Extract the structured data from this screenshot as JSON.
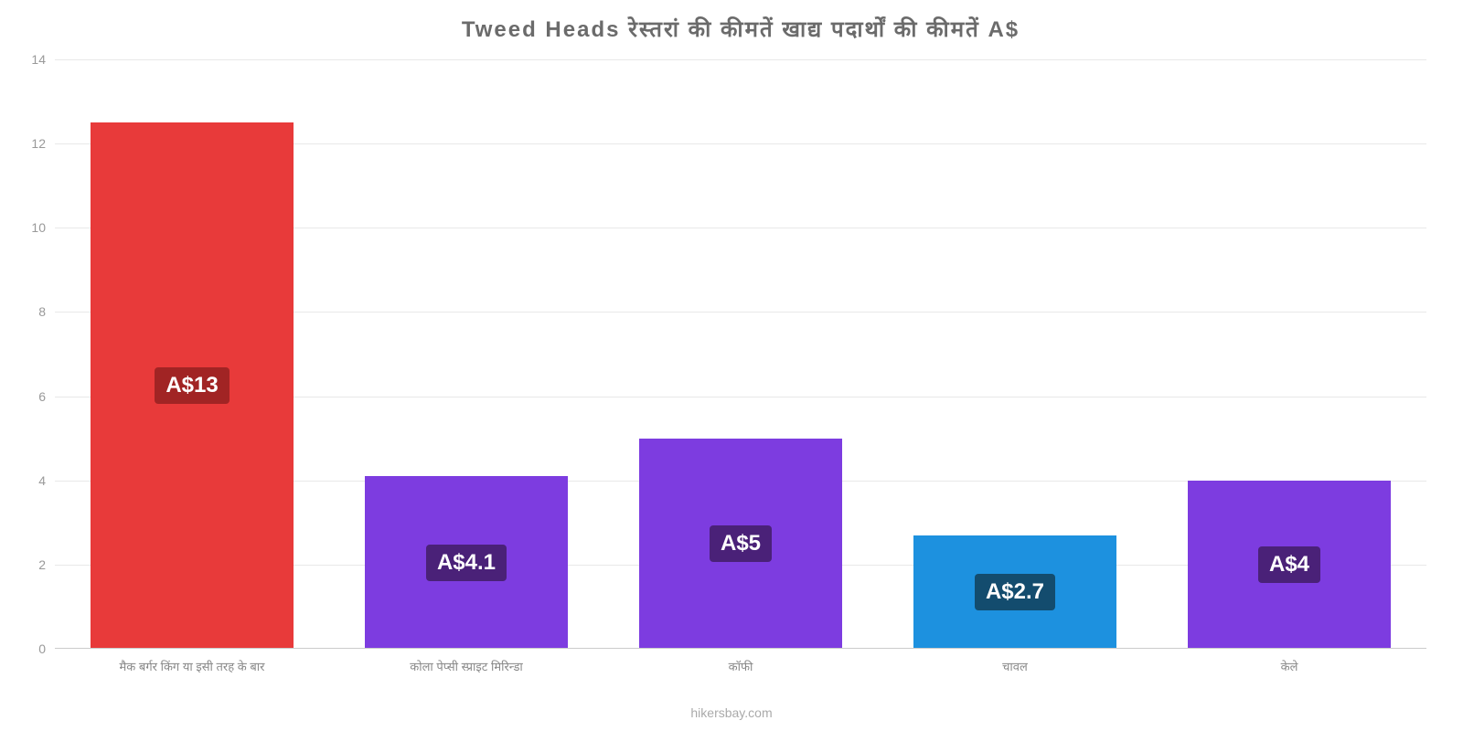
{
  "chart": {
    "type": "bar",
    "title": "Tweed Heads रेस्तरां    की    कीमतें    खाद्य    पदार्थों    की    कीमतें    A$",
    "title_color": "#6b6b6b",
    "title_fontsize": 24,
    "background_color": "#ffffff",
    "grid_color": "#e8e8e8",
    "axis_line_color": "#cccccc",
    "tick_label_color": "#999999",
    "x_label_color": "#888888",
    "ylim": [
      0,
      14
    ],
    "ytick_step": 2,
    "bar_width": 0.74,
    "categories": [
      "मैक बर्गर किंग या इसी तरह के बार",
      "कोला पेप्सी स्प्राइट मिरिन्डा",
      "कॉफी",
      "चावल",
      "केले"
    ],
    "values": [
      12.5,
      4.1,
      5.0,
      2.7,
      4.0
    ],
    "value_labels": [
      "A$13",
      "A$4.1",
      "A$5",
      "A$2.7",
      "A$4"
    ],
    "bar_colors": [
      "#e83a3a",
      "#7d3ce0",
      "#7d3ce0",
      "#1d91df",
      "#7d3ce0"
    ],
    "label_bg_colors": [
      "#a12424",
      "#4a2178",
      "#4a2178",
      "#134c6e",
      "#4a2178"
    ],
    "label_fontsize": 24,
    "yticks": [
      0,
      2,
      4,
      6,
      8,
      10,
      12,
      14
    ]
  },
  "watermark": "hikersbay.com"
}
